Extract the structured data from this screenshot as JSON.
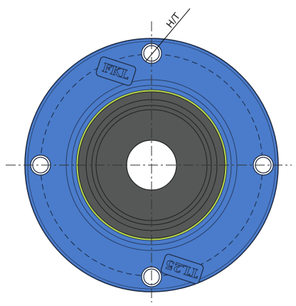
{
  "labels": {
    "hole_type": "H/T",
    "brand": "FKL",
    "model": "TL25"
  }
}
